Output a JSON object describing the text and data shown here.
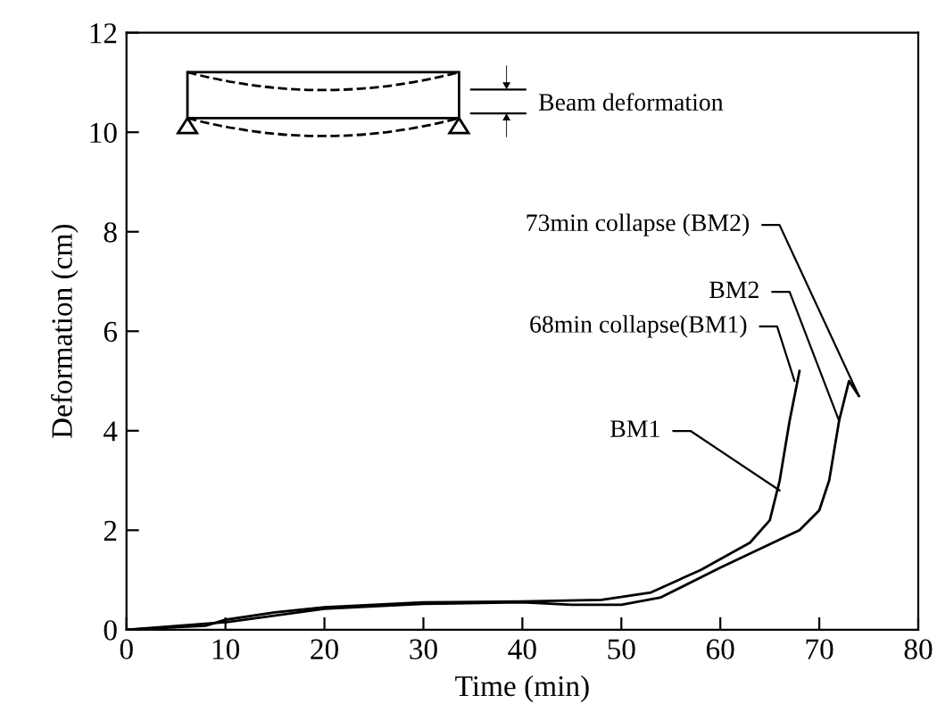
{
  "chart_data": {
    "type": "line",
    "xlabel": "Time (min)",
    "ylabel": "Deformation (cm)",
    "xlim": [
      0,
      80
    ],
    "ylim": [
      0,
      12
    ],
    "xticks": [
      0,
      10,
      20,
      30,
      40,
      50,
      60,
      70,
      80
    ],
    "yticks": [
      0,
      2,
      4,
      6,
      8,
      10,
      12
    ],
    "grid": false,
    "legend": false,
    "marker": "none",
    "line_style": "solid",
    "series": [
      {
        "color": "#000000",
        "x": [
          0,
          8,
          10,
          15,
          20,
          30,
          40,
          48,
          53,
          58,
          63,
          65,
          66,
          67,
          68
        ],
        "values": [
          0,
          0.08,
          0.2,
          0.35,
          0.45,
          0.55,
          0.57,
          0.6,
          0.75,
          1.2,
          1.75,
          2.2,
          3,
          4.2,
          5.2
        ]
      },
      {
        "color": "#000000",
        "x": [
          0,
          10,
          20,
          30,
          40,
          45,
          50,
          54,
          60,
          65,
          68,
          70,
          71,
          72,
          73,
          74
        ],
        "values": [
          0,
          0.15,
          0.42,
          0.52,
          0.55,
          0.5,
          0.5,
          0.65,
          1.25,
          1.72,
          2.0,
          2.4,
          3,
          4.2,
          5.0,
          4.7
        ]
      }
    ],
    "annotations": [
      {
        "text": "73min collapse (BM2)",
        "x": 74,
        "y": 4.7
      },
      {
        "text": "BM2",
        "x": 72,
        "y": 4.2
      },
      {
        "text": "68min collapse(BM1)",
        "x": 67.5,
        "y": 5.0
      },
      {
        "text": "BM1",
        "x": 66,
        "y": 2.8
      },
      "Beam deformation"
    ]
  }
}
